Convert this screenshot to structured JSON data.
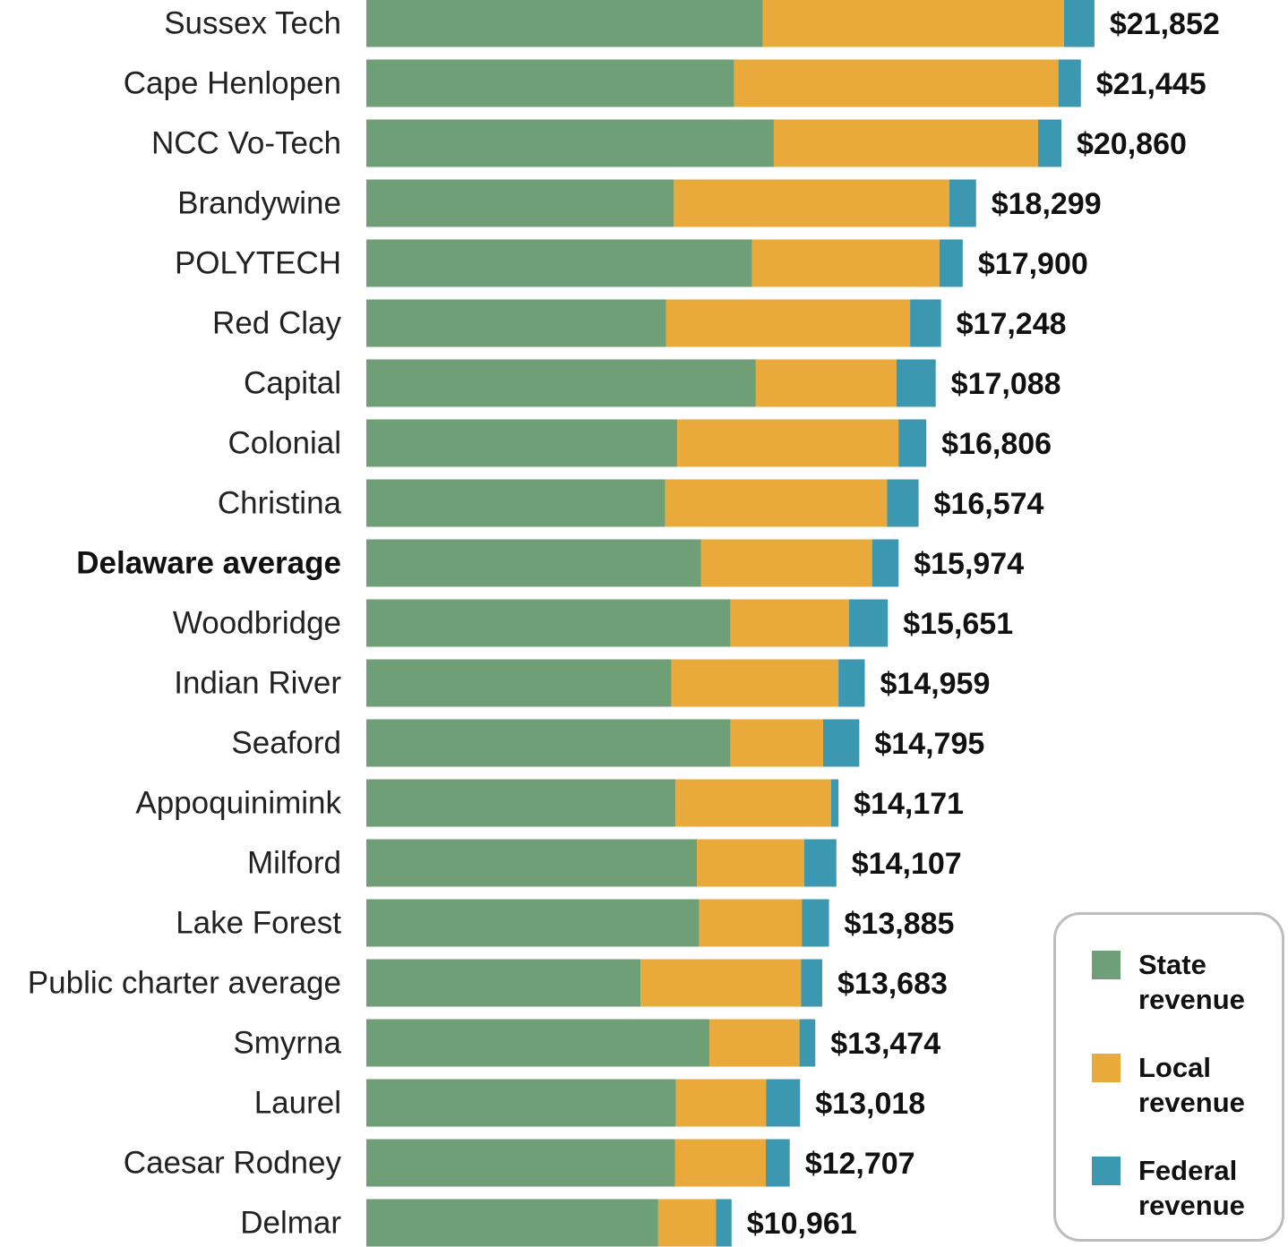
{
  "chart_data": {
    "type": "bar",
    "orientation": "horizontal",
    "stacked": true,
    "title": "",
    "xlabel": "",
    "ylabel": "",
    "xlim": [
      0,
      22000
    ],
    "grid": false,
    "legend_position": "bottom-right",
    "colors": {
      "state": "#6f9f76",
      "local": "#e9aa3b",
      "federal": "#3c98b0"
    },
    "categories": [
      "Sussex Tech",
      "Cape Henlopen",
      "NCC Vo-Tech",
      "Brandywine",
      "POLYTECH",
      "Red Clay",
      "Capital",
      "Colonial",
      "Christina",
      "Delaware average",
      "Woodbridge",
      "Indian River",
      "Seaford",
      "Appoquinimink",
      "Milford",
      "Lake Forest",
      "Public charter average",
      "Smyrna",
      "Laurel",
      "Caesar Rodney",
      "Delmar"
    ],
    "bold_categories": [
      "Delaware average"
    ],
    "series": [
      {
        "name": "State revenue",
        "values": [
          11900,
          11040,
          12230,
          9230,
          11580,
          9000,
          11690,
          9330,
          8970,
          10040,
          10930,
          9160,
          10930,
          9280,
          9920,
          9990,
          8230,
          10300,
          9290,
          9270,
          8760
        ]
      },
      {
        "name": "Local revenue",
        "values": [
          9040,
          9730,
          7930,
          8270,
          5620,
          7320,
          4220,
          6640,
          6660,
          5140,
          3560,
          5010,
          2780,
          4670,
          3220,
          3080,
          4820,
          2700,
          2710,
          2720,
          1730
        ]
      },
      {
        "name": "Federal revenue",
        "values": [
          912,
          675,
          700,
          799,
          700,
          928,
          1178,
          836,
          944,
          794,
          1161,
          789,
          1085,
          221,
          967,
          815,
          633,
          474,
          1018,
          717,
          471
        ]
      }
    ],
    "totals": [
      "$21,852",
      "$21,445",
      "$20,860",
      "$18,299",
      "$17,900",
      "$17,248",
      "$17,088",
      "$16,806",
      "$16,574",
      "$15,974",
      "$15,651",
      "$14,959",
      "$14,795",
      "$14,171",
      "$14,107",
      "$13,885",
      "$13,683",
      "$13,474",
      "$13,018",
      "$12,707",
      "$10,961"
    ]
  },
  "legend": {
    "items": [
      {
        "key": "state",
        "label": "State revenue",
        "color": "#6f9f76"
      },
      {
        "key": "local",
        "label": "Local revenue",
        "color": "#e9aa3b"
      },
      {
        "key": "federal",
        "label": "Federal revenue",
        "color": "#3c98b0"
      }
    ]
  }
}
